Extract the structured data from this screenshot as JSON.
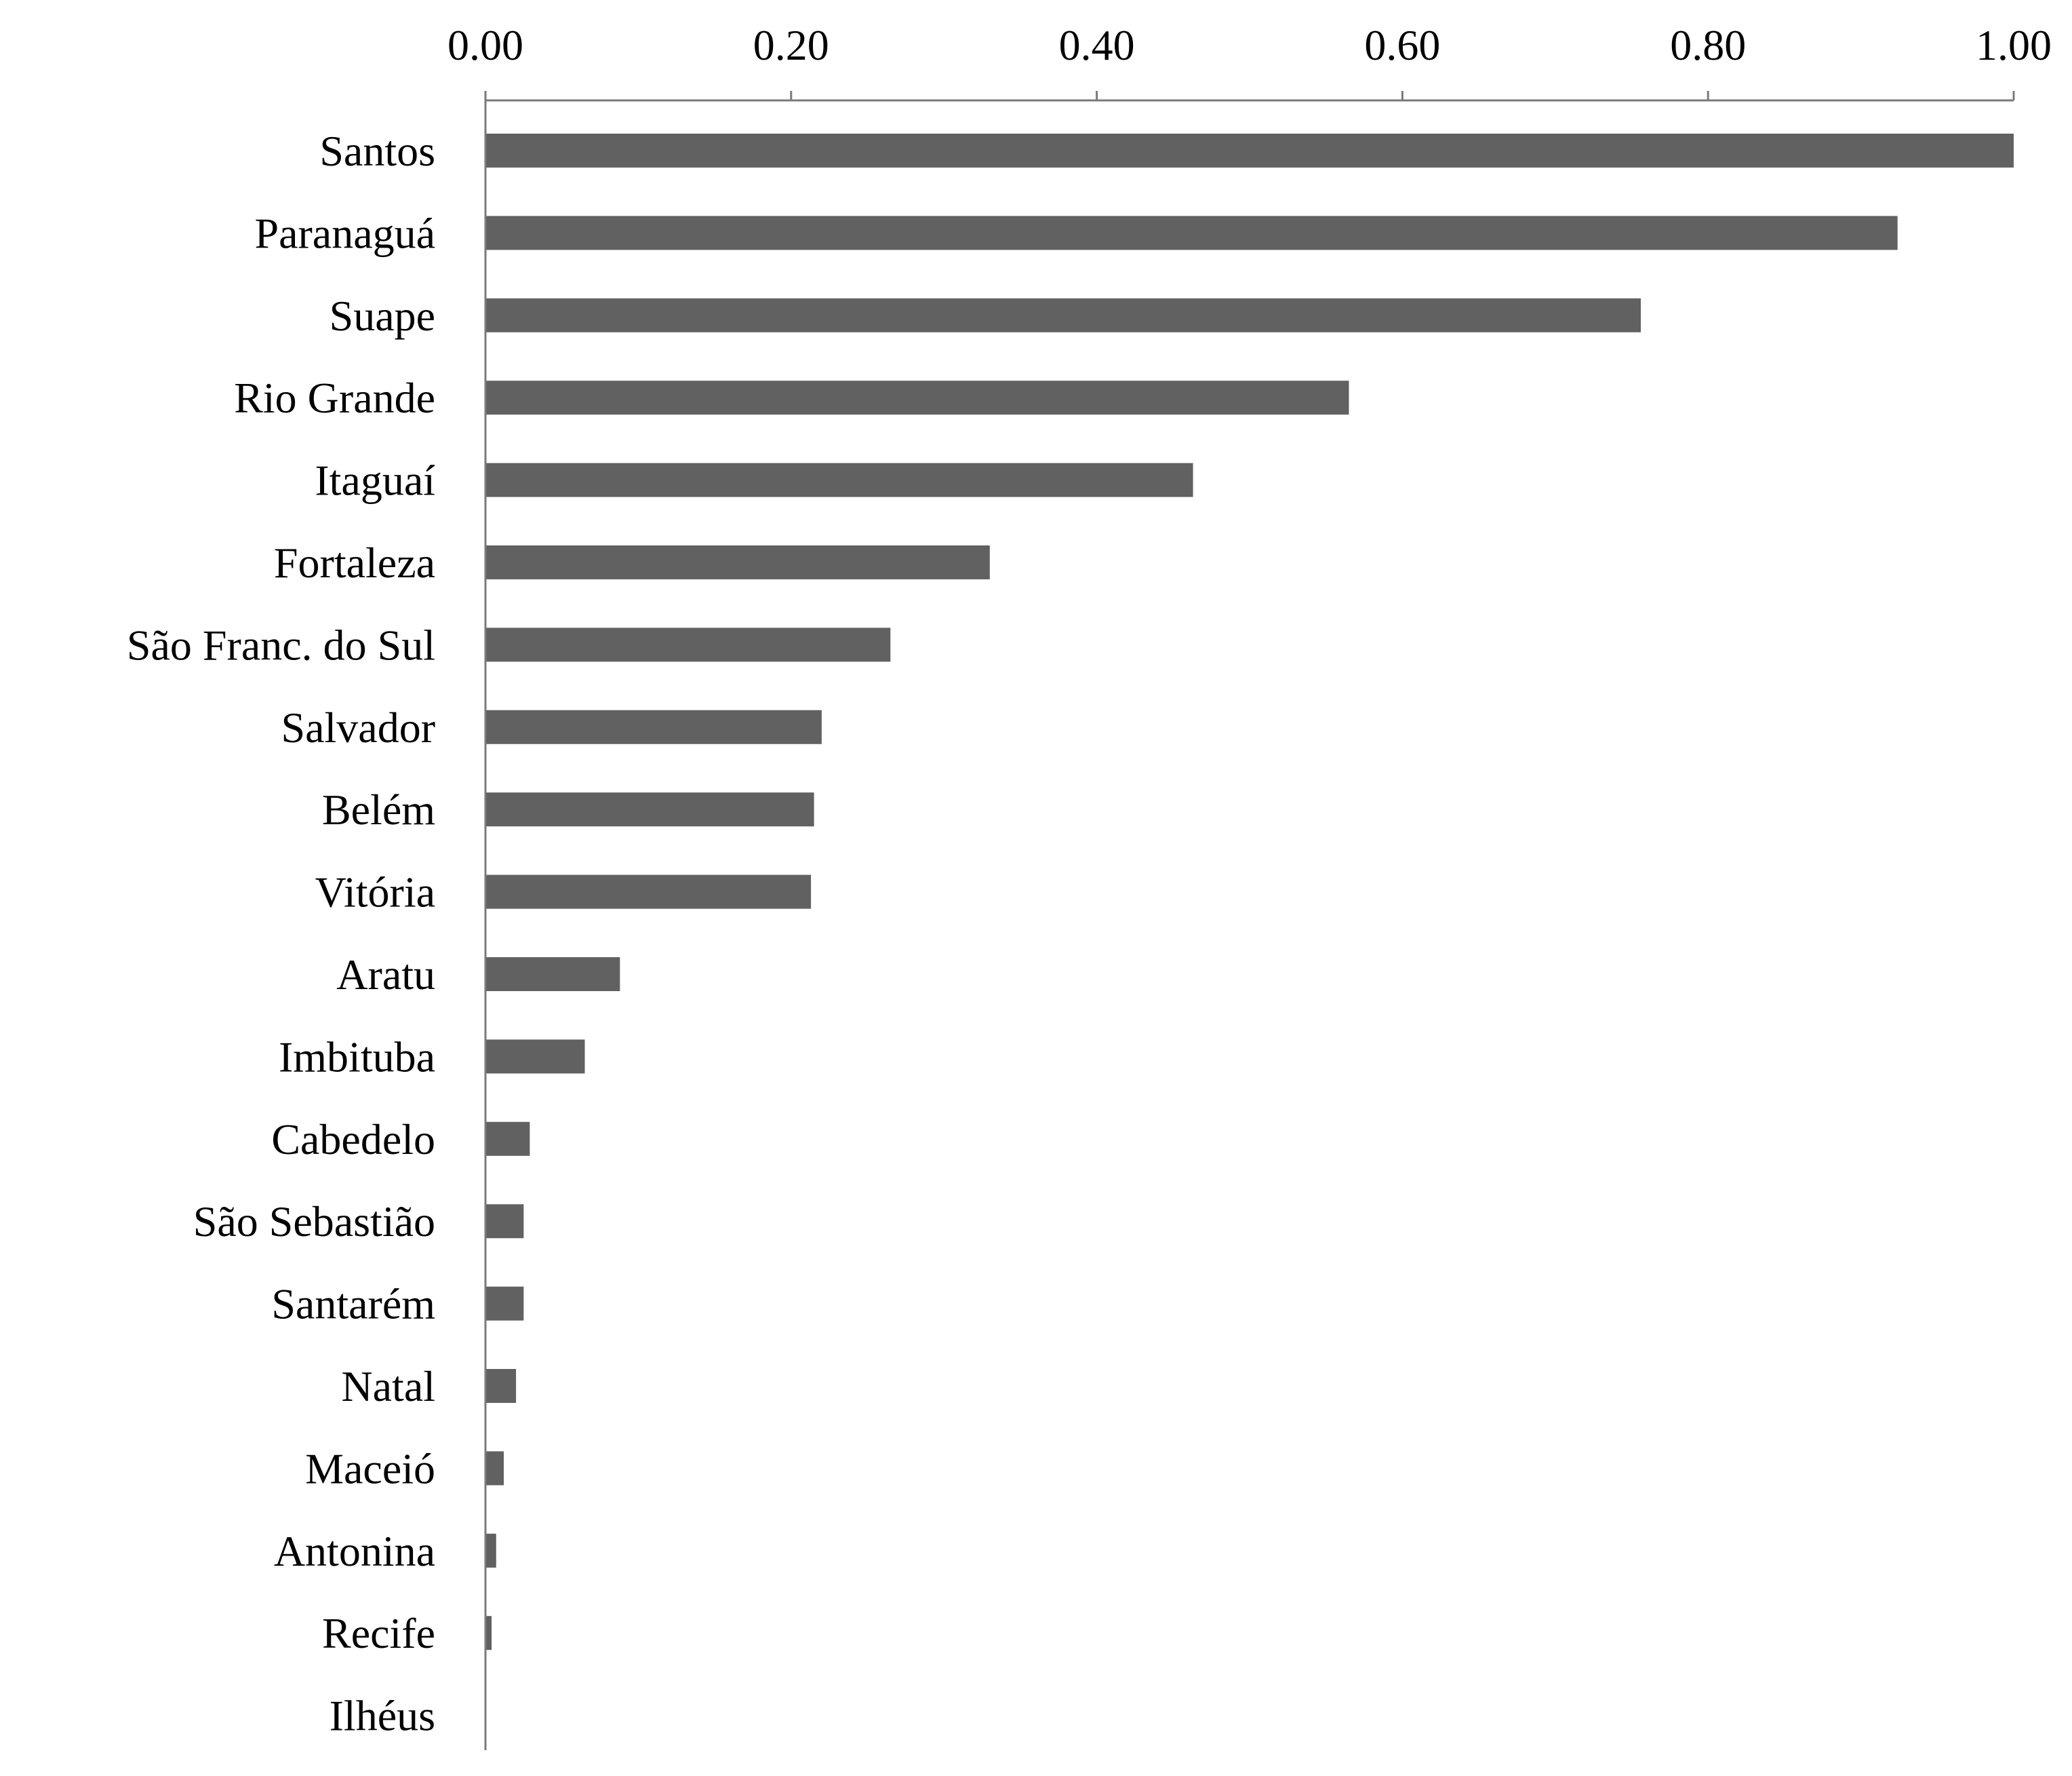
{
  "chart_data": {
    "type": "bar",
    "orientation": "horizontal",
    "title": "",
    "xlabel": "",
    "ylabel": "",
    "xlim": [
      0,
      1
    ],
    "x_ticks": [
      "0.00",
      "0.20",
      "0.40",
      "0.60",
      "0.80",
      "1.00"
    ],
    "x_axis_position": "top",
    "grid": false,
    "legend": "none",
    "bar_color": "#616161",
    "categories": [
      "Santos",
      "Paranaguá",
      "Suape",
      "Rio Grande",
      "Itaguaí",
      "Fortaleza",
      "São Franc. do Sul",
      "Salvador",
      "Belém",
      "Vitória",
      "Aratu",
      "Imbituba",
      "Cabedelo",
      "São Sebastião",
      "Santarém",
      "Natal",
      "Maceió",
      "Antonina",
      "Recife",
      "Ilhéus"
    ],
    "values": [
      1.0,
      0.924,
      0.756,
      0.565,
      0.463,
      0.33,
      0.265,
      0.22,
      0.215,
      0.213,
      0.088,
      0.065,
      0.029,
      0.025,
      0.025,
      0.02,
      0.012,
      0.007,
      0.004,
      0.0
    ]
  }
}
